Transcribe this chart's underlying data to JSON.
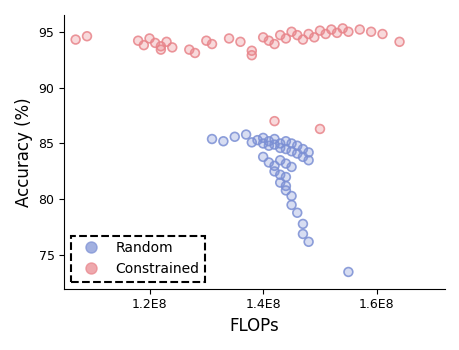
{
  "title": "",
  "xlabel": "FLOPs",
  "ylabel": "Accuracy (%)",
  "xlim": [
    105000000.0,
    172000000.0
  ],
  "ylim": [
    72,
    96.5
  ],
  "yticks": [
    75,
    80,
    85,
    90,
    95
  ],
  "background_color": "#ffffff",
  "random_color": "#7b8fd4",
  "constrained_color": "#e8848a",
  "random_points": [
    [
      131000000.0,
      85.4
    ],
    [
      133000000.0,
      85.2
    ],
    [
      135000000.0,
      85.6
    ],
    [
      137000000.0,
      85.8
    ],
    [
      138000000.0,
      85.1
    ],
    [
      139000000.0,
      85.3
    ],
    [
      140000000.0,
      85.5
    ],
    [
      140000000.0,
      85.0
    ],
    [
      141000000.0,
      85.2
    ],
    [
      141000000.0,
      84.8
    ],
    [
      142000000.0,
      85.4
    ],
    [
      142000000.0,
      84.9
    ],
    [
      143000000.0,
      85.0
    ],
    [
      143000000.0,
      84.6
    ],
    [
      144000000.0,
      85.2
    ],
    [
      144000000.0,
      84.5
    ],
    [
      145000000.0,
      85.0
    ],
    [
      145000000.0,
      84.3
    ],
    [
      146000000.0,
      84.8
    ],
    [
      146000000.0,
      84.1
    ],
    [
      147000000.0,
      84.5
    ],
    [
      147000000.0,
      83.8
    ],
    [
      148000000.0,
      84.2
    ],
    [
      148000000.0,
      83.5
    ],
    [
      140000000.0,
      83.8
    ],
    [
      141000000.0,
      83.3
    ],
    [
      142000000.0,
      83.0
    ],
    [
      143000000.0,
      83.5
    ],
    [
      144000000.0,
      83.2
    ],
    [
      145000000.0,
      82.9
    ],
    [
      142000000.0,
      82.5
    ],
    [
      143000000.0,
      82.2
    ],
    [
      144000000.0,
      82.0
    ],
    [
      143000000.0,
      81.5
    ],
    [
      144000000.0,
      81.2
    ],
    [
      144000000.0,
      80.8
    ],
    [
      145000000.0,
      80.3
    ],
    [
      145000000.0,
      79.5
    ],
    [
      146000000.0,
      78.8
    ],
    [
      147000000.0,
      77.8
    ],
    [
      147000000.0,
      76.9
    ],
    [
      148000000.0,
      76.2
    ],
    [
      155000000.0,
      73.5
    ]
  ],
  "constrained_points": [
    [
      107000000.0,
      94.3
    ],
    [
      109000000.0,
      94.6
    ],
    [
      118000000.0,
      94.2
    ],
    [
      119000000.0,
      93.8
    ],
    [
      120000000.0,
      94.4
    ],
    [
      121000000.0,
      94.0
    ],
    [
      122000000.0,
      93.7
    ],
    [
      122000000.0,
      93.4
    ],
    [
      123000000.0,
      94.1
    ],
    [
      124000000.0,
      93.6
    ],
    [
      127000000.0,
      93.4
    ],
    [
      128000000.0,
      93.1
    ],
    [
      130000000.0,
      94.2
    ],
    [
      131000000.0,
      93.9
    ],
    [
      134000000.0,
      94.4
    ],
    [
      136000000.0,
      94.1
    ],
    [
      138000000.0,
      93.3
    ],
    [
      138000000.0,
      92.9
    ],
    [
      140000000.0,
      94.5
    ],
    [
      141000000.0,
      94.2
    ],
    [
      142000000.0,
      93.9
    ],
    [
      143000000.0,
      94.7
    ],
    [
      144000000.0,
      94.4
    ],
    [
      145000000.0,
      95.0
    ],
    [
      146000000.0,
      94.7
    ],
    [
      147000000.0,
      94.3
    ],
    [
      148000000.0,
      94.8
    ],
    [
      149000000.0,
      94.5
    ],
    [
      150000000.0,
      95.1
    ],
    [
      151000000.0,
      94.8
    ],
    [
      152000000.0,
      95.2
    ],
    [
      153000000.0,
      94.9
    ],
    [
      154000000.0,
      95.3
    ],
    [
      155000000.0,
      95.0
    ],
    [
      157000000.0,
      95.2
    ],
    [
      159000000.0,
      95.0
    ],
    [
      161000000.0,
      94.8
    ],
    [
      164000000.0,
      94.1
    ],
    [
      142000000.0,
      87.0
    ],
    [
      150000000.0,
      86.3
    ]
  ]
}
